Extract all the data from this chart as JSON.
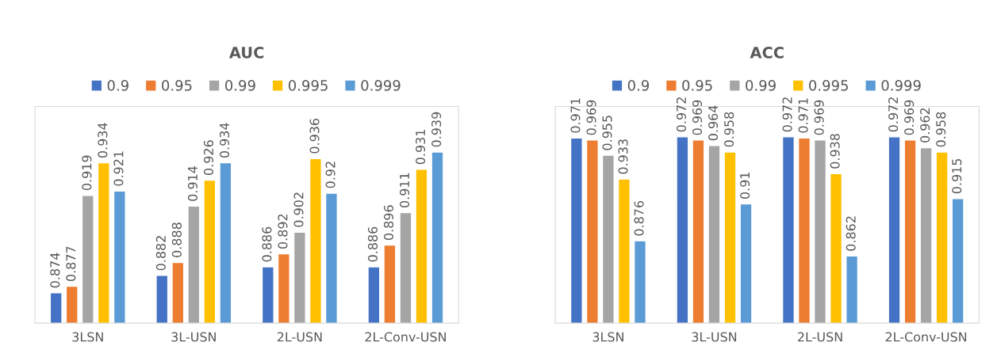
{
  "chart_data": [
    {
      "type": "bar",
      "title": "AUC",
      "categories": [
        "3LSN",
        "3L-USN",
        "2L-USN",
        "2L-Conv-USN"
      ],
      "ylim": [
        0.86,
        0.96
      ],
      "data_labels": true,
      "legend": "top",
      "grid": false,
      "series": [
        {
          "name": "0.9",
          "color": "#4472c4",
          "values": [
            0.874,
            0.882,
            0.886,
            0.886
          ]
        },
        {
          "name": "0.95",
          "color": "#ed7d31",
          "values": [
            0.877,
            0.888,
            0.892,
            0.896
          ]
        },
        {
          "name": "0.99",
          "color": "#a5a5a5",
          "values": [
            0.919,
            0.914,
            0.902,
            0.911
          ]
        },
        {
          "name": "0.995",
          "color": "#ffc000",
          "values": [
            0.934,
            0.926,
            0.936,
            0.931
          ]
        },
        {
          "name": "0.999",
          "color": "#5b9bd5",
          "values": [
            0.921,
            0.934,
            0.92,
            0.939
          ]
        }
      ]
    },
    {
      "type": "bar",
      "title": "ACC",
      "categories": [
        "3LSN",
        "3L-USN",
        "2L-USN",
        "2L-Conv-USN"
      ],
      "ylim": [
        0.8,
        1.0
      ],
      "data_labels": true,
      "legend": "top",
      "grid": false,
      "series": [
        {
          "name": "0.9",
          "color": "#4472c4",
          "values": [
            0.971,
            0.972,
            0.972,
            0.972
          ]
        },
        {
          "name": "0.95",
          "color": "#ed7d31",
          "values": [
            0.969,
            0.969,
            0.971,
            0.969
          ]
        },
        {
          "name": "0.99",
          "color": "#a5a5a5",
          "values": [
            0.955,
            0.964,
            0.969,
            0.962
          ]
        },
        {
          "name": "0.995",
          "color": "#ffc000",
          "values": [
            0.933,
            0.958,
            0.938,
            0.958
          ]
        },
        {
          "name": "0.999",
          "color": "#5b9bd5",
          "values": [
            0.876,
            0.91,
            0.862,
            0.915
          ]
        }
      ]
    }
  ]
}
